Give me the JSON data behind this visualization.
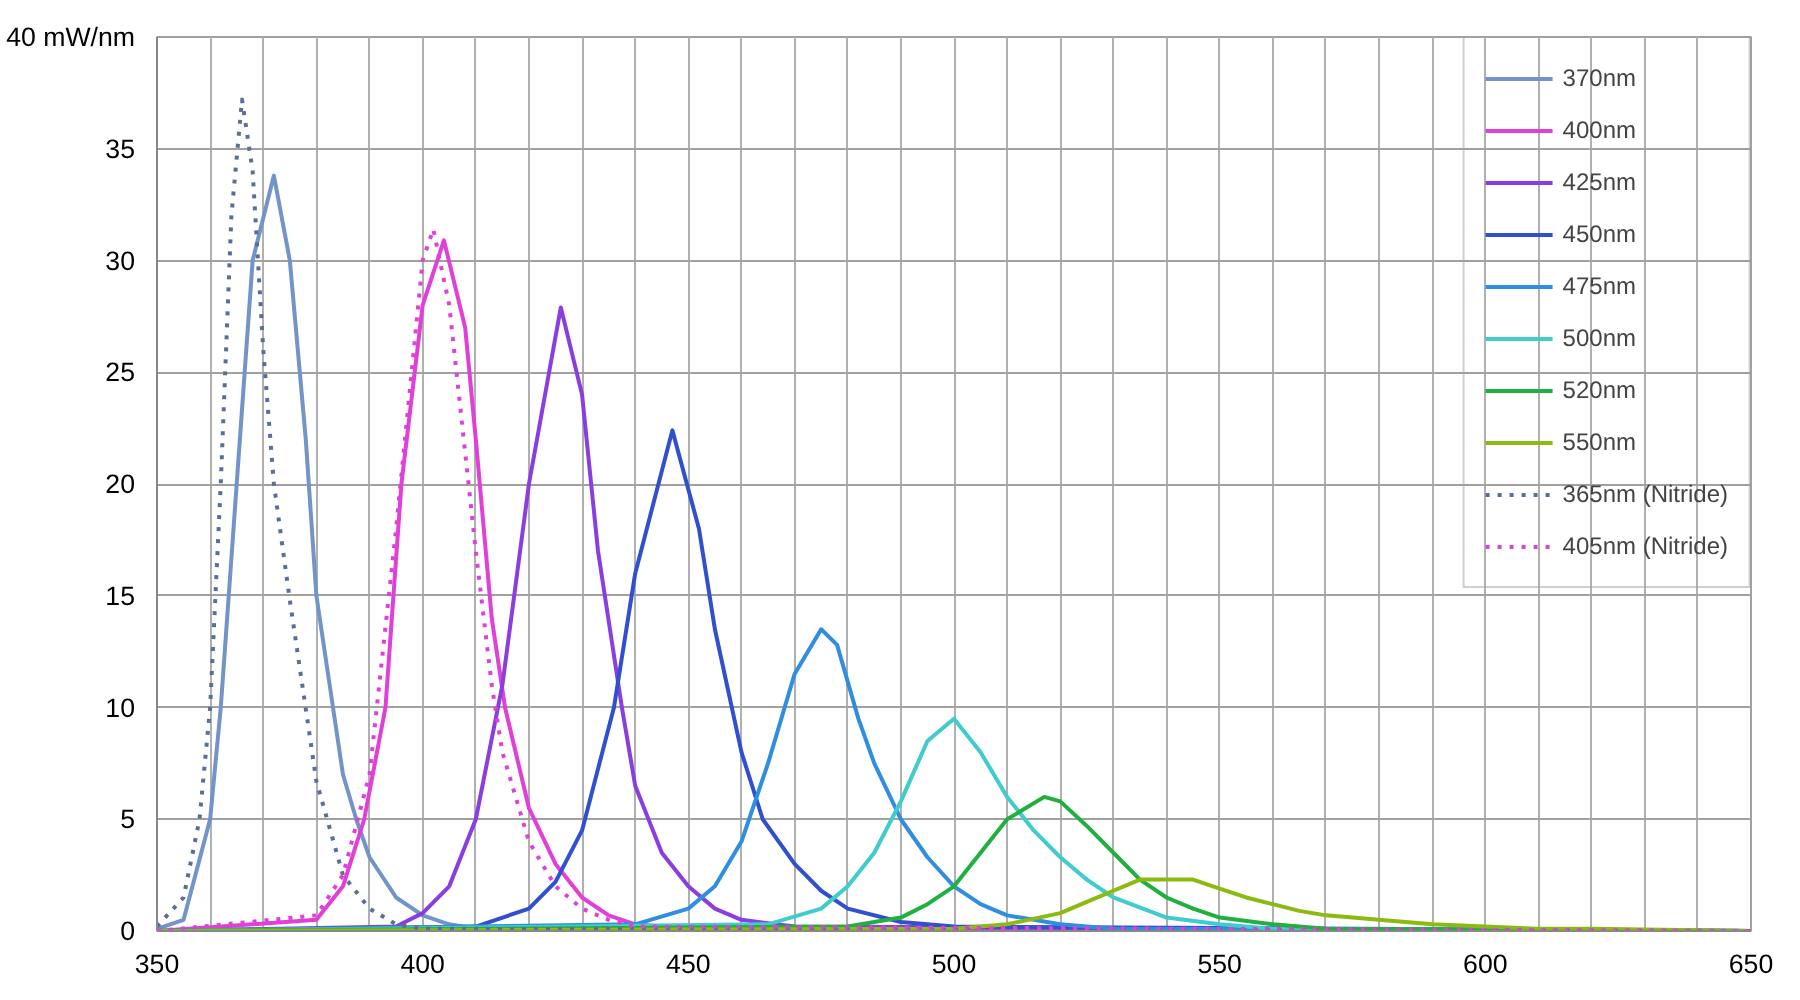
{
  "chart_data": {
    "type": "line",
    "legend": "top right",
    "grid": true,
    "line_style": "solid",
    "marker": "none",
    "xlim": [
      350,
      650
    ],
    "ylim": [
      0,
      40
    ],
    "xticks": [
      350,
      {
        "value": 360,
        "label": null
      },
      {
        "value": 370,
        "label": null
      },
      {
        "value": 380,
        "label": null
      },
      {
        "value": 390,
        "label": null
      },
      400,
      {
        "value": 410,
        "label": null
      },
      {
        "value": 420,
        "label": null
      },
      {
        "value": 430,
        "label": null
      },
      {
        "value": 440,
        "label": null
      },
      450,
      {
        "value": 460,
        "label": null
      },
      {
        "value": 470,
        "label": null
      },
      {
        "value": 480,
        "label": null
      },
      {
        "value": 490,
        "label": null
      },
      500,
      {
        "value": 510,
        "label": null
      },
      {
        "value": 520,
        "label": null
      },
      {
        "value": 530,
        "label": null
      },
      {
        "value": 540,
        "label": null
      },
      550,
      {
        "value": 560,
        "label": null
      },
      {
        "value": 570,
        "label": null
      },
      {
        "value": 580,
        "label": null
      },
      {
        "value": 590,
        "label": null
      },
      600,
      {
        "value": 610,
        "label": null
      },
      {
        "value": 620,
        "label": null
      },
      {
        "value": 630,
        "label": null
      },
      {
        "value": 640,
        "label": null
      },
      650
    ],
    "yticks": [
      0,
      5,
      10,
      15,
      20,
      25,
      30,
      35,
      {
        "value": 40,
        "label": "40 mW/nm"
      }
    ],
    "series": [
      {
        "name": "370nm",
        "color": "#7294c8",
        "x": [
          350,
          355,
          360,
          362,
          365,
          368,
          372,
          375,
          378,
          380,
          385,
          387.5,
          390,
          395,
          400,
          405,
          410,
          420,
          650
        ],
        "values": [
          0.1,
          0.5,
          5,
          10,
          20,
          30,
          33.8,
          30,
          22,
          15,
          7,
          5,
          3.3,
          1.5,
          0.7,
          0.3,
          0.1,
          0.1,
          0
        ]
      },
      {
        "name": "400nm",
        "color": "#e040d8",
        "x": [
          350,
          380,
          385,
          389,
          393,
          396,
          400,
          404,
          408,
          410,
          413,
          415.5,
          420,
          425,
          430,
          435,
          440,
          450,
          650
        ],
        "values": [
          0,
          0.5,
          2,
          5,
          10,
          20,
          28,
          30.9,
          27,
          22,
          14,
          10,
          5.5,
          3,
          1.5,
          0.7,
          0.3,
          0.1,
          0
        ]
      },
      {
        "name": "425nm",
        "color": "#8a3ee0",
        "x": [
          350,
          395,
          400,
          405,
          410,
          415,
          420,
          426,
          430,
          433,
          437.5,
          440,
          445,
          450,
          455,
          460,
          470,
          650
        ],
        "values": [
          0,
          0.2,
          0.8,
          2,
          5,
          11,
          20,
          27.9,
          24,
          17,
          10,
          6.5,
          3.5,
          2,
          1,
          0.5,
          0.2,
          0
        ]
      },
      {
        "name": "450nm",
        "color": "#3050d0",
        "x": [
          350,
          410,
          420,
          425,
          430,
          436,
          440,
          447,
          452,
          455,
          460,
          464,
          470,
          475,
          480,
          490,
          500,
          650
        ],
        "values": [
          0,
          0.2,
          1,
          2.2,
          4.5,
          10,
          16,
          22.4,
          18,
          13.5,
          8,
          5,
          3,
          1.8,
          1,
          0.4,
          0.2,
          0
        ]
      },
      {
        "name": "475nm",
        "color": "#2f8ee0",
        "x": [
          350,
          440,
          450,
          455,
          460,
          465,
          470,
          475,
          478,
          482,
          485,
          490,
          495,
          500,
          505,
          510,
          520,
          530,
          650
        ],
        "values": [
          0,
          0.3,
          1,
          2,
          4,
          7.5,
          11.5,
          13.5,
          12.8,
          9.5,
          7.5,
          5,
          3.3,
          2,
          1.2,
          0.7,
          0.3,
          0.1,
          0
        ]
      },
      {
        "name": "500nm",
        "color": "#40cccc",
        "x": [
          350,
          465,
          475,
          480,
          485,
          490,
          495,
          500,
          505,
          510,
          515,
          520,
          525,
          530,
          540,
          550,
          560,
          650
        ],
        "values": [
          0,
          0.3,
          1,
          2,
          3.5,
          5.8,
          8.5,
          9.5,
          8,
          6,
          4.5,
          3.3,
          2.3,
          1.5,
          0.6,
          0.3,
          0.1,
          0
        ]
      },
      {
        "name": "520nm",
        "color": "#20b040",
        "x": [
          350,
          480,
          490,
          495,
          500,
          505,
          510,
          517,
          520,
          525,
          530,
          535,
          540,
          545,
          550,
          560,
          570,
          650
        ],
        "values": [
          0,
          0.2,
          0.6,
          1.2,
          2,
          3.5,
          5,
          6,
          5.8,
          4.7,
          3.5,
          2.3,
          1.5,
          1,
          0.6,
          0.3,
          0.1,
          0
        ]
      },
      {
        "name": "550nm",
        "color": "#8cba10",
        "x": [
          350,
          500,
          510,
          520,
          525,
          530,
          535,
          545,
          550,
          555,
          560,
          565,
          570,
          580,
          590,
          600,
          610,
          620,
          650
        ],
        "values": [
          0,
          0.1,
          0.3,
          0.8,
          1.3,
          1.8,
          2.3,
          2.3,
          1.9,
          1.5,
          1.2,
          0.9,
          0.7,
          0.5,
          0.3,
          0.2,
          0.1,
          0.1,
          0
        ]
      },
      {
        "name": "365nm (Nitride)",
        "color": "#5a6e96",
        "line_style": "dotted",
        "x": [
          350,
          355,
          358,
          360,
          362,
          364,
          366,
          368,
          370,
          372,
          375,
          380,
          385,
          390,
          395,
          400,
          650
        ],
        "values": [
          0.2,
          1.5,
          5,
          10,
          20,
          32,
          37.2,
          34,
          26,
          20,
          14.8,
          6.7,
          2.5,
          1,
          0.3,
          0.1,
          0
        ]
      },
      {
        "name": "405nm (Nitride)",
        "color": "#e040d8",
        "line_style": "dotted",
        "x": [
          350,
          380,
          385,
          390,
          395,
          400,
          402,
          405,
          410,
          413,
          415,
          420,
          425,
          430,
          435,
          440,
          650
        ],
        "values": [
          0,
          0.7,
          2.5,
          7,
          18,
          30,
          31.4,
          28,
          17,
          11,
          8,
          4,
          2,
          1,
          0.5,
          0.2,
          0
        ]
      }
    ]
  }
}
